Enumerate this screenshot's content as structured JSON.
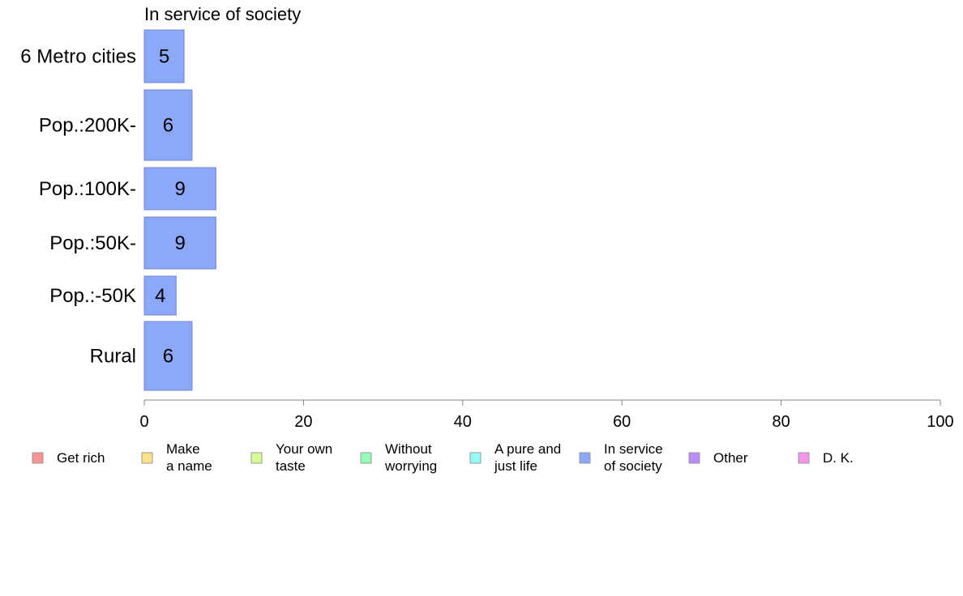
{
  "chart_data": {
    "type": "bar",
    "orientation": "horizontal",
    "title": "In service of society",
    "categories": [
      "6 Metro cities",
      "Pop.:200K-",
      "Pop.:100K-",
      "Pop.:50K-",
      "Pop.:-50K",
      "Rural"
    ],
    "series": [
      {
        "name": "In service of society",
        "values": [
          5,
          6,
          9,
          9,
          4,
          6
        ],
        "color": "#8ca8f8"
      }
    ],
    "bar_labels": [
      "5",
      "6",
      "9",
      "9",
      "4",
      "6"
    ],
    "xlim": [
      0,
      100
    ],
    "xticks": [
      0,
      20,
      40,
      60,
      80,
      100
    ],
    "xtick_labels": [
      "0",
      "20",
      "40",
      "60",
      "80",
      "100"
    ],
    "grid": false,
    "legend": {
      "placement": "bottom",
      "items": [
        {
          "lines": [
            "Get rich"
          ],
          "color": "#f99494"
        },
        {
          "lines": [
            "Make",
            "a name"
          ],
          "color": "#fde28c"
        },
        {
          "lines": [
            "Your own",
            "taste"
          ],
          "color": "#d8fc94"
        },
        {
          "lines": [
            "Without",
            "worrying"
          ],
          "color": "#94fcb8"
        },
        {
          "lines": [
            "A pure and",
            "just life"
          ],
          "color": "#94fcf8"
        },
        {
          "lines": [
            "In service",
            "of society"
          ],
          "color": "#8ca8f8"
        },
        {
          "lines": [
            "Other"
          ],
          "color": "#bc8cf8"
        },
        {
          "lines": [
            "D. K."
          ],
          "color": "#f894e8"
        }
      ]
    }
  }
}
